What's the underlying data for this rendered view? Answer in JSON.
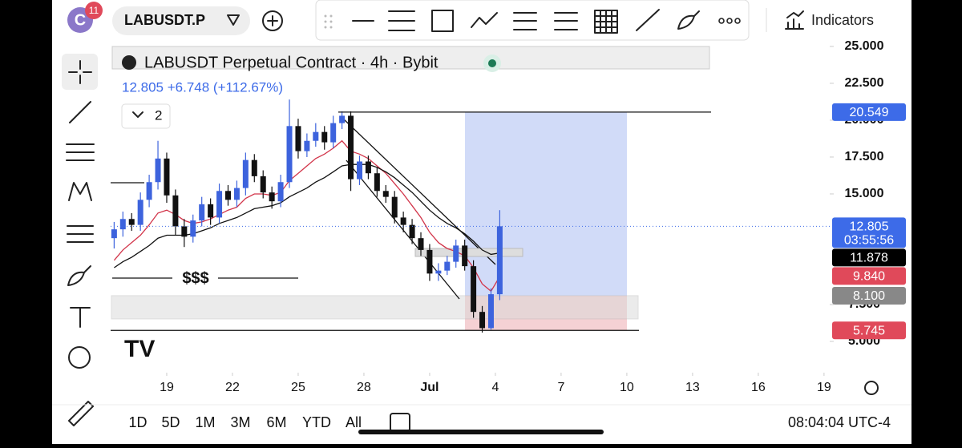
{
  "top_bar": {
    "badge": "11",
    "avatar": "C",
    "symbol": "LABUSDT.P",
    "indicators": "Indicators"
  },
  "legend": {
    "title": "LABUSDT Perpetual Contract · 4h · Bybit",
    "quote": "12.805 +6.748 (+112.67%)",
    "collapse_count": "2"
  },
  "chart_data": {
    "type": "candlestick",
    "x": [
      16.6,
      17.0,
      17.4,
      17.8,
      18.2,
      18.6,
      19.0,
      19.4,
      19.8,
      20.2,
      20.6,
      21.0,
      21.4,
      21.8,
      22.2,
      22.6,
      23.0,
      23.4,
      23.8,
      24.2,
      24.6,
      25.0,
      25.4,
      25.8,
      26.2,
      26.6,
      27.0,
      27.4,
      27.8,
      28.2,
      28.6,
      29.0,
      29.4,
      29.8,
      30.2,
      30.6,
      31.0,
      31.4,
      31.8,
      32.2,
      32.6,
      33.0,
      33.4,
      33.8,
      34.2
    ],
    "open": [
      12.0,
      12.6,
      13.3,
      12.9,
      14.6,
      15.8,
      17.4,
      14.9,
      12.8,
      12.1,
      13.2,
      14.3,
      13.4,
      15.2,
      14.6,
      15.4,
      17.3,
      16.2,
      15.1,
      14.5,
      15.8,
      19.6,
      17.9,
      18.6,
      19.2,
      18.5,
      19.8,
      20.3,
      16.0,
      17.2,
      16.4,
      15.2,
      14.8,
      13.4,
      12.9,
      12.0,
      11.2,
      9.6,
      9.8,
      10.4,
      11.5,
      10.1,
      7.0,
      5.9,
      8.2
    ],
    "high": [
      13.1,
      13.8,
      13.7,
      15.1,
      16.3,
      18.6,
      17.8,
      15.3,
      13.3,
      13.6,
      14.8,
      14.7,
      15.7,
      15.6,
      15.9,
      17.8,
      17.7,
      16.6,
      15.5,
      16.3,
      21.4,
      20.1,
      19.1,
      19.8,
      19.6,
      20.3,
      20.6,
      20.6,
      17.6,
      17.6,
      16.8,
      15.6,
      15.2,
      13.8,
      13.3,
      12.4,
      11.6,
      10.3,
      10.8,
      11.9,
      11.9,
      10.5,
      7.4,
      8.6,
      13.9
    ],
    "low": [
      11.3,
      12.1,
      12.5,
      12.5,
      14.1,
      15.3,
      14.4,
      12.2,
      11.4,
      11.7,
      12.8,
      12.9,
      13.0,
      14.2,
      14.1,
      14.9,
      15.8,
      14.7,
      14.0,
      14.1,
      15.4,
      17.4,
      17.5,
      18.2,
      18.0,
      18.1,
      19.4,
      15.2,
      15.6,
      16.0,
      14.8,
      14.4,
      13.0,
      12.4,
      11.6,
      10.8,
      9.1,
      9.1,
      9.5,
      10.0,
      9.8,
      6.6,
      5.6,
      5.8,
      7.8
    ],
    "close": [
      12.6,
      13.3,
      12.9,
      14.6,
      15.8,
      17.4,
      14.9,
      12.8,
      12.1,
      13.2,
      14.3,
      13.4,
      15.2,
      14.6,
      15.4,
      17.3,
      16.2,
      15.1,
      14.5,
      15.8,
      19.6,
      17.9,
      18.6,
      19.2,
      18.5,
      19.8,
      20.3,
      16.0,
      17.2,
      16.4,
      15.2,
      14.8,
      13.4,
      12.9,
      12.0,
      11.2,
      9.6,
      9.8,
      10.4,
      11.5,
      10.1,
      7.0,
      5.9,
      8.2,
      12.805
    ],
    "up_color": "#3d63dd",
    "down_color": "#111111",
    "series": [
      {
        "color": "#d2354a",
        "values": [
          10.5,
          11.2,
          11.7,
          12.2,
          12.9,
          13.7,
          13.9,
          13.6,
          13.2,
          13.0,
          13.1,
          13.3,
          13.6,
          13.9,
          14.1,
          14.7,
          15.0,
          15.0,
          14.9,
          15.1,
          15.9,
          16.4,
          16.9,
          17.4,
          17.7,
          18.1,
          18.6,
          17.9,
          17.7,
          17.4,
          16.9,
          16.4,
          15.7,
          15.0,
          14.2,
          13.4,
          12.4,
          11.7,
          11.3,
          11.1,
          10.8,
          10.0,
          8.9,
          8.4,
          9.4
        ]
      },
      {
        "color": "#111111",
        "values": [
          10.0,
          10.4,
          10.7,
          11.1,
          11.5,
          12.0,
          12.2,
          12.2,
          12.2,
          12.3,
          12.5,
          12.7,
          13.0,
          13.2,
          13.4,
          13.7,
          14.0,
          14.1,
          14.2,
          14.4,
          14.8,
          15.1,
          15.4,
          15.8,
          16.1,
          16.5,
          16.9,
          17.0,
          17.0,
          17.0,
          16.8,
          16.5,
          16.1,
          15.6,
          15.1,
          14.5,
          13.9,
          13.4,
          13.0,
          12.7,
          12.3,
          11.8,
          11.2,
          10.9,
          11.0
        ]
      }
    ],
    "xlim": [
      16.44,
      49.26
    ],
    "xticks": [
      19,
      22,
      25,
      28,
      {
        "value": 31,
        "label": "Jul"
      },
      {
        "value": 34,
        "label": "4"
      },
      {
        "value": 37,
        "label": "7"
      },
      {
        "value": 40,
        "label": "10"
      },
      {
        "value": 43,
        "label": "13"
      },
      {
        "value": 46,
        "label": "16"
      },
      {
        "value": 49,
        "label": "19"
      }
    ],
    "ylim": [
      2.88,
      25.16
    ],
    "yticks": [
      {
        "value": 25,
        "label": "25.000"
      },
      {
        "value": 22.5,
        "label": "22.500"
      },
      {
        "value": 20,
        "label": "20.000"
      },
      {
        "value": 17.5,
        "label": "17.500"
      },
      {
        "value": 15,
        "label": "15.000"
      },
      {
        "value": 7.5,
        "label": "7.500"
      },
      {
        "value": 5,
        "label": "5.000"
      }
    ],
    "price_labels": [
      {
        "value": 20.549,
        "color": "#3d6be8"
      },
      {
        "value": 12.805,
        "color": "#3d6be8",
        "countdown": "03:55:56"
      },
      {
        "value": 11.878,
        "color": "#000000"
      },
      {
        "value": {
          "value": 9.84,
          "label": "9.840"
        },
        "color": "#e0495a"
      },
      {
        "value": {
          "value": 8.1,
          "label": "8.100"
        },
        "color": "#888888"
      },
      {
        "value": 5.745,
        "color": "#e0495a"
      }
    ],
    "annotation": "$$$"
  },
  "bottom_bar": {
    "ranges": [
      "1D",
      "5D",
      "1M",
      "3M",
      "6M",
      "YTD",
      "All"
    ],
    "clock": "08:04:04 UTC-4"
  }
}
